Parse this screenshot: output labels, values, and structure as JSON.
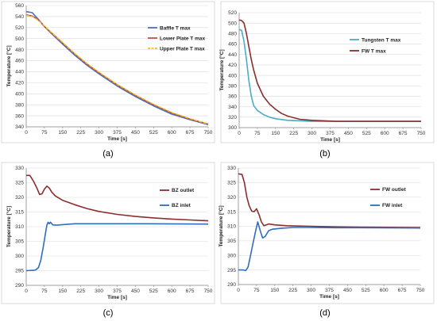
{
  "chart_data": [
    {
      "type": "line",
      "caption": "(a)",
      "xlabel": "Time [s]",
      "ylabel": "Temperature [°C]",
      "xlim": [
        0,
        750
      ],
      "ylim": [
        340,
        560
      ],
      "xticks": [
        0,
        75,
        150,
        225,
        300,
        375,
        450,
        525,
        600,
        675,
        750
      ],
      "yticks": [
        340,
        360,
        380,
        400,
        420,
        440,
        460,
        480,
        500,
        520,
        540,
        560
      ],
      "grid": "horizontal",
      "legend_position": "top-right",
      "series": [
        {
          "name": "Baffle T max",
          "color": "#4472C4",
          "dash": false,
          "x": [
            0,
            25,
            50,
            75,
            100,
            150,
            200,
            250,
            300,
            375,
            450,
            525,
            600,
            675,
            750
          ],
          "y": [
            549,
            547,
            535,
            522,
            511,
            490,
            470,
            452,
            436,
            414,
            395,
            378,
            363,
            353,
            344
          ]
        },
        {
          "name": "Lower Plate T max",
          "color": "#C0504D",
          "dash": false,
          "x": [
            0,
            25,
            50,
            75,
            100,
            150,
            200,
            250,
            300,
            375,
            450,
            525,
            600,
            675,
            750
          ],
          "y": [
            543,
            541,
            534,
            522,
            512,
            492,
            472,
            454,
            438,
            416,
            397,
            380,
            365,
            354,
            345
          ]
        },
        {
          "name": "Upper Plate T max",
          "color": "#E8C21A",
          "dash": true,
          "x": [
            0,
            25,
            50,
            75,
            100,
            150,
            200,
            250,
            300,
            375,
            450,
            525,
            600,
            675,
            750
          ],
          "y": [
            542,
            540,
            533,
            523,
            513,
            493,
            473,
            455,
            439,
            417,
            398,
            381,
            366,
            355,
            345
          ]
        }
      ]
    },
    {
      "type": "line",
      "caption": "(b)",
      "xlabel": "Time [s]",
      "ylabel": "Temperature [°C]",
      "xlim": [
        0,
        750
      ],
      "ylim": [
        300,
        520
      ],
      "xticks": [
        0,
        75,
        150,
        225,
        300,
        375,
        450,
        525,
        600,
        675,
        750
      ],
      "yticks": [
        300,
        320,
        340,
        360,
        380,
        400,
        420,
        440,
        460,
        480,
        500,
        520
      ],
      "grid": "horizontal",
      "legend_position": "right",
      "series": [
        {
          "name": "Tungsten T max",
          "color": "#4BACC6",
          "dash": false,
          "x": [
            0,
            10,
            20,
            30,
            40,
            50,
            60,
            75,
            100,
            125,
            150,
            200,
            250,
            300,
            400,
            500,
            750
          ],
          "y": [
            488,
            486,
            465,
            430,
            390,
            360,
            342,
            333,
            325,
            320,
            317,
            314,
            313,
            312,
            312,
            312,
            312
          ]
        },
        {
          "name": "FW T max",
          "color": "#8B2E2E",
          "dash": false,
          "x": [
            0,
            10,
            20,
            30,
            40,
            50,
            60,
            75,
            100,
            125,
            150,
            175,
            200,
            250,
            300,
            350,
            400,
            500,
            750
          ],
          "y": [
            506,
            505,
            500,
            480,
            455,
            430,
            410,
            385,
            360,
            345,
            335,
            327,
            322,
            316,
            314,
            313,
            312,
            312,
            312
          ]
        }
      ]
    },
    {
      "type": "line",
      "caption": "(c)",
      "xlabel": "Time [s]",
      "ylabel": "Temperature [°C]",
      "xlim": [
        0,
        750
      ],
      "ylim": [
        290,
        330
      ],
      "xticks": [
        0,
        75,
        150,
        225,
        300,
        375,
        450,
        525,
        600,
        675,
        750
      ],
      "yticks": [
        290,
        295,
        300,
        305,
        310,
        315,
        320,
        325,
        330
      ],
      "grid": "horizontal",
      "legend_position": "right",
      "series": [
        {
          "name": "BZ outlet",
          "color": "#8B2E2E",
          "dash": false,
          "x": [
            0,
            15,
            30,
            45,
            55,
            65,
            75,
            85,
            95,
            105,
            120,
            150,
            200,
            250,
            300,
            375,
            450,
            525,
            600,
            675,
            750
          ],
          "y": [
            327.5,
            327.5,
            325.5,
            323,
            321,
            321.2,
            322.8,
            323.8,
            323.2,
            321.8,
            320.5,
            319,
            317.5,
            316.2,
            315.2,
            314.2,
            313.5,
            313,
            312.6,
            312.3,
            312
          ],
          "label_position": "above"
        },
        {
          "name": "BZ inlet",
          "color": "#2F6EBA",
          "dash": false,
          "x": [
            0,
            30,
            40,
            50,
            60,
            70,
            80,
            85,
            90,
            95,
            100,
            110,
            125,
            150,
            200,
            250,
            300,
            400,
            500,
            750
          ],
          "y": [
            295,
            295.1,
            295.3,
            296,
            298.5,
            303,
            308,
            310.5,
            311.5,
            311,
            311.5,
            310.6,
            310.5,
            310.7,
            311,
            311,
            311,
            311,
            311,
            310.9
          ],
          "label_position": "above"
        }
      ]
    },
    {
      "type": "line",
      "caption": "(d)",
      "xlabel": "Time [s]",
      "ylabel": "Temperature [°C]",
      "xlim": [
        0,
        750
      ],
      "ylim": [
        290,
        330
      ],
      "xticks": [
        0,
        75,
        150,
        225,
        300,
        375,
        450,
        525,
        600,
        675,
        750
      ],
      "yticks": [
        290,
        295,
        300,
        305,
        310,
        315,
        320,
        325,
        330
      ],
      "grid": "horizontal",
      "legend_position": "right",
      "series": [
        {
          "name": "FW outlet",
          "color": "#8B2E2E",
          "dash": false,
          "x": [
            0,
            15,
            25,
            35,
            45,
            55,
            65,
            75,
            85,
            95,
            105,
            115,
            125,
            150,
            200,
            300,
            400,
            500,
            750
          ],
          "y": [
            328,
            327.8,
            325,
            320,
            317,
            315.2,
            315,
            316,
            314,
            311.5,
            310.2,
            310.5,
            310.8,
            310.5,
            310.2,
            310,
            309.8,
            309.7,
            309.6
          ],
          "label_position": "above"
        },
        {
          "name": "FW inlet",
          "color": "#2F6EBA",
          "dash": false,
          "x": [
            0,
            20,
            30,
            40,
            50,
            60,
            70,
            80,
            90,
            100,
            110,
            125,
            140,
            175,
            225,
            300,
            400,
            500,
            750
          ],
          "y": [
            295,
            295,
            294.8,
            296,
            300,
            304,
            308,
            311.5,
            308.5,
            306,
            306.5,
            308.5,
            309,
            309.3,
            309.6,
            309.6,
            309.5,
            309.5,
            309.4
          ],
          "label_position": "above"
        }
      ]
    }
  ]
}
